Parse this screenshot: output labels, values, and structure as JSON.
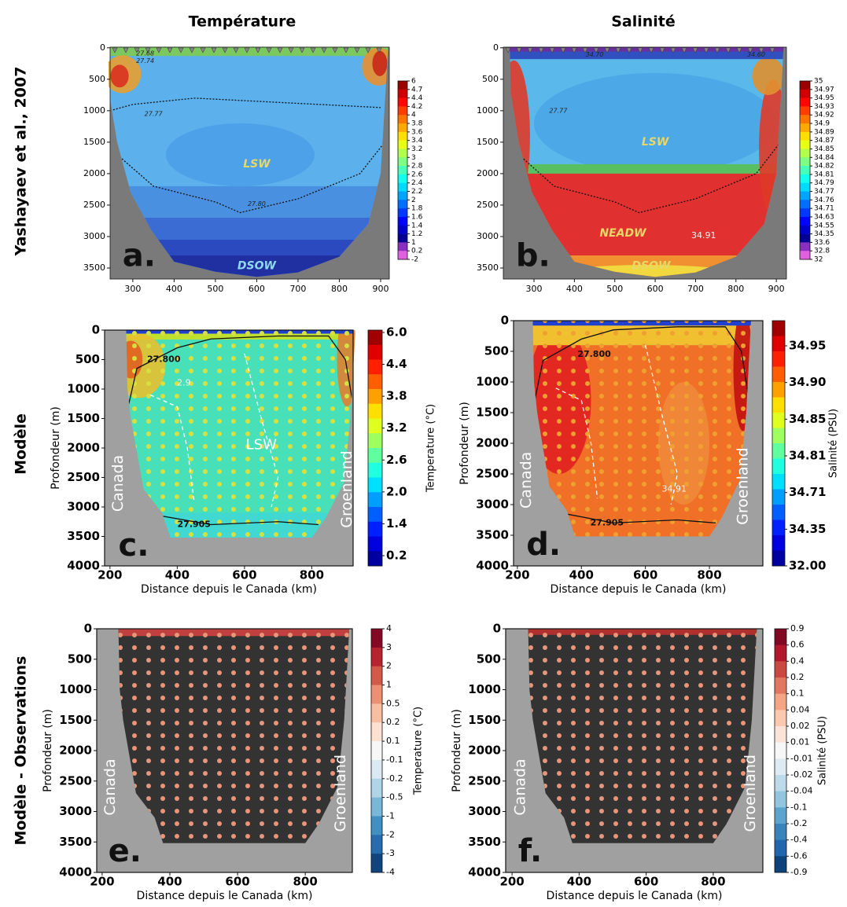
{
  "figure": {
    "column_titles": [
      "Température",
      "Salinité"
    ],
    "row_titles": [
      "Yashayaev et al., 2007",
      "Modèle",
      "Modèle - Observations"
    ]
  },
  "chart_data": [
    {
      "type": "section",
      "xlim": [
        245,
        921
      ],
      "ylim": [
        3675,
        -10
      ],
      "xticks": [
        300,
        400,
        500,
        600,
        700,
        800,
        900
      ],
      "yticks": [
        0,
        500,
        1000,
        1500,
        2000,
        2500,
        3000,
        3500
      ],
      "cbar_ticks": [
        6,
        4.7,
        4.4,
        4.2,
        4,
        3.8,
        3.6,
        3.4,
        3.2,
        3,
        2.8,
        2.6,
        2.4,
        2.2,
        2,
        1.8,
        1.6,
        1.4,
        1.2,
        1,
        0.2,
        -2
      ],
      "annotations": [
        "27.68",
        "27.74",
        "27.77",
        "27.80",
        "LSW",
        "DSOW",
        "a."
      ]
    },
    {
      "type": "section",
      "xlim": [
        224,
        925
      ],
      "ylim": [
        3675,
        -10
      ],
      "xticks": [
        300,
        400,
        500,
        600,
        700,
        800,
        900
      ],
      "yticks": [
        0,
        500,
        1000,
        1500,
        2000,
        2500,
        3000,
        3500
      ],
      "cbar_ticks": [
        35,
        34.97,
        34.95,
        34.93,
        34.92,
        34.9,
        34.89,
        34.87,
        34.85,
        34.84,
        34.82,
        34.81,
        34.79,
        34.77,
        34.76,
        34.71,
        34.63,
        34.55,
        34.35,
        33.6,
        32.8,
        32
      ],
      "annotations": [
        "34.70",
        "34.60",
        "27.77",
        "LSW",
        "NEADW",
        "34.91",
        "DSOW",
        "b."
      ]
    },
    {
      "type": "section",
      "xlim": [
        184,
        923
      ],
      "ylim": [
        4000,
        0
      ],
      "xticks": [
        200,
        400,
        600,
        800
      ],
      "yticks": [
        0,
        500,
        1000,
        1500,
        2000,
        2500,
        3000,
        3500,
        4000
      ],
      "xlabel": "Distance depuis le Canada (km)",
      "ylabel": "Profondeur (m)",
      "cbar_label": "Temperature (°C)",
      "cbar_ticks": [
        {
          "value": 6,
          "label": "6.0"
        },
        4.4,
        3.8,
        3.2,
        2.6,
        {
          "value": 2,
          "label": "2.0"
        },
        1.4,
        0.2
      ],
      "annotations": [
        "27.800",
        "LSW",
        "27.905",
        "2.9",
        "Canada",
        "Groenland",
        "c."
      ]
    },
    {
      "type": "section",
      "xlim": [
        188,
        967
      ],
      "ylim": [
        4000,
        0
      ],
      "xticks": [
        200,
        400,
        600,
        800
      ],
      "yticks": [
        0,
        500,
        1000,
        1500,
        2000,
        2500,
        3000,
        3500,
        4000
      ],
      "xlabel": "Distance depuis le Canada (km)",
      "ylabel": "Profondeur (m)",
      "cbar_label": "Salinité (PSU)",
      "cbar_ticks": [
        34.95,
        {
          "value": 34.9,
          "label": "34.90"
        },
        34.85,
        34.81,
        34.71,
        34.35,
        {
          "value": 32,
          "label": "32.00"
        }
      ],
      "annotations": [
        "27.800",
        "34.91",
        "27.905",
        "Canada",
        "Groenland",
        "d."
      ]
    },
    {
      "type": "section",
      "xlim": [
        184,
        939
      ],
      "ylim": [
        4000,
        0
      ],
      "xticks": [
        200,
        400,
        600,
        800
      ],
      "yticks": [
        0,
        500,
        1000,
        1500,
        2000,
        2500,
        3000,
        3500,
        4000
      ],
      "xlabel": "Distance depuis le Canada (km)",
      "ylabel": "Profondeur (m)",
      "cbar_label": "Temperature (°C)",
      "cbar_ticks": [
        4,
        3,
        2,
        1,
        0.5,
        0.2,
        0.1,
        -0.1,
        -0.2,
        -0.5,
        -1,
        -2,
        -3,
        -4
      ],
      "annotations": [
        "Canada",
        "Groenland",
        "e."
      ]
    },
    {
      "type": "section",
      "xlim": [
        181,
        948
      ],
      "ylim": [
        4000,
        0
      ],
      "xticks": [
        200,
        400,
        600,
        800
      ],
      "yticks": [
        0,
        500,
        1000,
        1500,
        2000,
        2500,
        3000,
        3500,
        4000
      ],
      "xlabel": "Distance depuis le Canada (km)",
      "ylabel": "Profondeur (m)",
      "cbar_label": "Salinité (PSU)",
      "cbar_ticks": [
        0.9,
        0.6,
        0.4,
        0.2,
        0.1,
        0.04,
        0.02,
        0.01,
        -0.01,
        -0.02,
        -0.04,
        -0.1,
        -0.2,
        -0.4,
        -0.6,
        -0.9
      ],
      "annotations": [
        "Canada",
        "Groenland",
        "f."
      ]
    }
  ]
}
